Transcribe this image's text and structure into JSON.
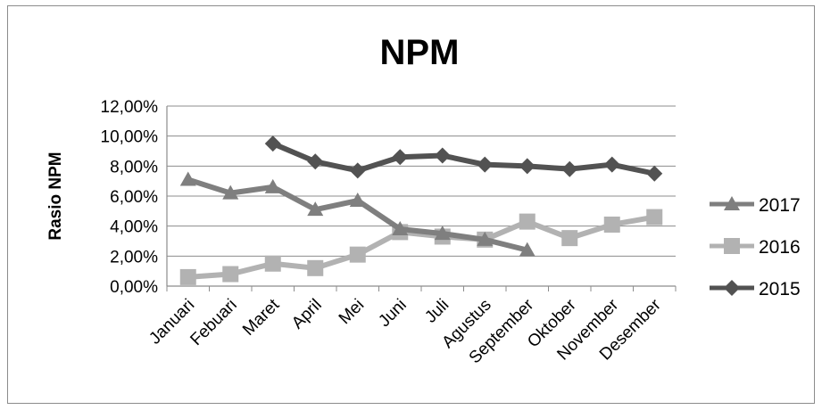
{
  "chart_data": {
    "type": "line",
    "title": "NPM",
    "xlabel": "",
    "ylabel": "Rasio NPM",
    "categories": [
      "Januari",
      "Febuari",
      "Maret",
      "April",
      "Mei",
      "Juni",
      "Juli",
      "Agustus",
      "September",
      "Oktober",
      "November",
      "Desember"
    ],
    "y_ticks": [
      "0,00%",
      "2,00%",
      "4,00%",
      "6,00%",
      "8,00%",
      "10,00%",
      "12,00%"
    ],
    "ylim": [
      0,
      12
    ],
    "grid": true,
    "legend_position": "right",
    "series": [
      {
        "name": "2017",
        "marker": "triangle",
        "color": "#7f7f7f",
        "values": [
          7.1,
          6.2,
          6.6,
          5.1,
          5.7,
          3.8,
          3.5,
          3.1,
          2.4,
          null,
          null,
          null
        ]
      },
      {
        "name": "2016",
        "marker": "square",
        "color": "#b2b2b2",
        "values": [
          0.6,
          0.8,
          1.5,
          1.2,
          2.1,
          3.6,
          3.3,
          3.1,
          4.3,
          3.2,
          4.1,
          4.6
        ]
      },
      {
        "name": "2015",
        "marker": "diamond",
        "color": "#525252",
        "values": [
          null,
          null,
          9.5,
          8.3,
          7.7,
          8.6,
          8.7,
          8.1,
          8.0,
          7.8,
          8.1,
          7.5
        ]
      }
    ]
  }
}
